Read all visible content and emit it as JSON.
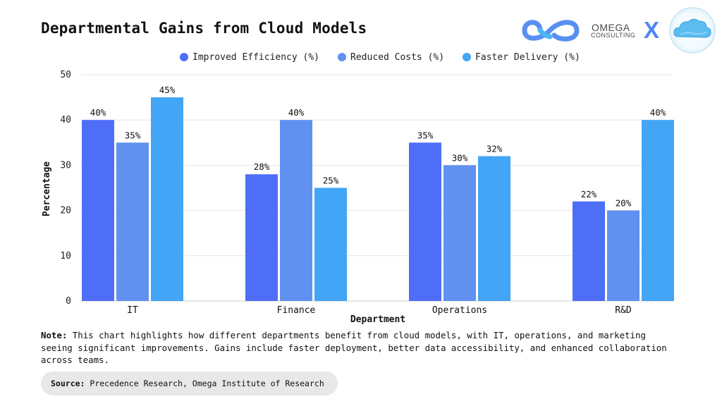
{
  "header": {
    "title": "Departmental Gains from Cloud Models",
    "logo_name": "OMEGA",
    "logo_sub": "CONSULTING",
    "x_mark": "X"
  },
  "colors": {
    "improved_efficiency": "#4f6ef7",
    "reduced_costs": "#6090f0",
    "faster_delivery": "#42a5f5",
    "grid": "#e6e6e6",
    "axis": "#333333",
    "logo_blue": "#4f86f7"
  },
  "chart_data": {
    "type": "bar",
    "categories": [
      "IT",
      "Finance",
      "Operations",
      "R&D"
    ],
    "series": [
      {
        "name": "Improved Efficiency (%)",
        "values": [
          40,
          28,
          35,
          22
        ]
      },
      {
        "name": "Reduced Costs (%)",
        "values": [
          35,
          40,
          30,
          20
        ]
      },
      {
        "name": "Faster Delivery (%)",
        "values": [
          45,
          25,
          32,
          40
        ]
      }
    ],
    "data_labels": [
      [
        "40%",
        "28%",
        "35%",
        "22%"
      ],
      [
        "35%",
        "40%",
        "30%",
        "20%"
      ],
      [
        "45%",
        "25%",
        "32%",
        "40%"
      ]
    ],
    "xlabel": "Department",
    "ylabel": "Percentage",
    "ylim": [
      0,
      50
    ],
    "yticks": [
      0,
      10,
      20,
      30,
      40,
      50
    ],
    "grid": true,
    "legend_position": "top-center"
  },
  "footer": {
    "note_label": "Note:",
    "note_text": "This chart highlights how different departments benefit from cloud models, with IT, operations, and marketing seeing significant improvements. Gains include faster deployment, better data accessibility, and enhanced collaboration across teams.",
    "source_label": "Source:",
    "source_text": "Precedence Research, Omega Institute of Research"
  }
}
